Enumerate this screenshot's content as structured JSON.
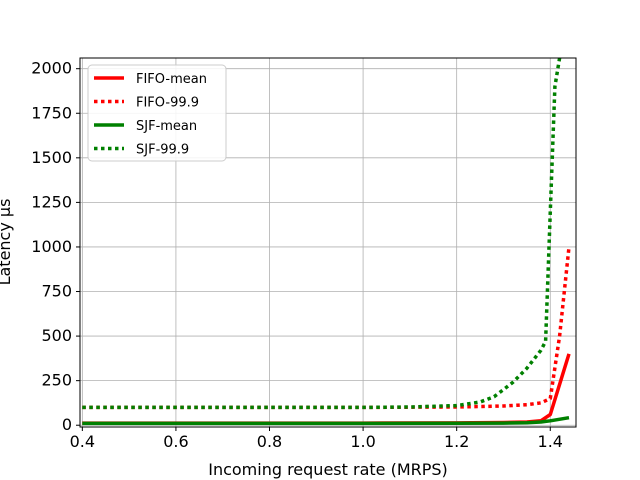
{
  "chart_data": {
    "type": "line",
    "xlabel": "Incoming request rate (MRPS)",
    "ylabel": "Latency μs",
    "xlim": [
      0.395,
      1.455
    ],
    "ylim": [
      -10,
      2060
    ],
    "xticks": [
      0.4,
      0.6,
      0.8,
      1.0,
      1.2,
      1.4
    ],
    "xtick_labels": [
      "0.4",
      "0.6",
      "0.8",
      "1.0",
      "1.2",
      "1.4"
    ],
    "yticks": [
      0,
      250,
      500,
      750,
      1000,
      1250,
      1500,
      1750,
      2000
    ],
    "ytick_labels": [
      "0",
      "250",
      "500",
      "750",
      "1000",
      "1250",
      "1500",
      "1750",
      "2000"
    ],
    "grid": true,
    "legend": "top-left",
    "series": [
      {
        "name": "FIFO-mean",
        "color": "#ff0000",
        "style": "solid",
        "x": [
          0.4,
          0.6,
          0.8,
          1.0,
          1.2,
          1.3,
          1.35,
          1.38,
          1.4,
          1.44
        ],
        "y": [
          12,
          12,
          12,
          12,
          13,
          15,
          18,
          25,
          60,
          400
        ]
      },
      {
        "name": "FIFO-99.9",
        "color": "#ff0000",
        "style": "dotted",
        "x": [
          0.4,
          0.6,
          0.8,
          1.0,
          1.2,
          1.3,
          1.35,
          1.38,
          1.4,
          1.42,
          1.44
        ],
        "y": [
          100,
          100,
          100,
          100,
          102,
          108,
          115,
          125,
          150,
          500,
          1000
        ]
      },
      {
        "name": "SJF-mean",
        "color": "#008000",
        "style": "solid",
        "x": [
          0.4,
          0.6,
          0.8,
          1.0,
          1.2,
          1.3,
          1.35,
          1.38,
          1.4,
          1.44
        ],
        "y": [
          10,
          10,
          10,
          10,
          11,
          12,
          14,
          18,
          25,
          42
        ]
      },
      {
        "name": "SJF-99.9",
        "color": "#008000",
        "style": "dotted",
        "x": [
          0.4,
          0.6,
          0.8,
          1.0,
          1.1,
          1.2,
          1.25,
          1.28,
          1.3,
          1.32,
          1.35,
          1.38,
          1.39,
          1.4,
          1.41,
          1.42
        ],
        "y": [
          100,
          100,
          100,
          100,
          102,
          110,
          130,
          160,
          200,
          240,
          320,
          420,
          470,
          1200,
          1900,
          2060
        ]
      }
    ]
  }
}
